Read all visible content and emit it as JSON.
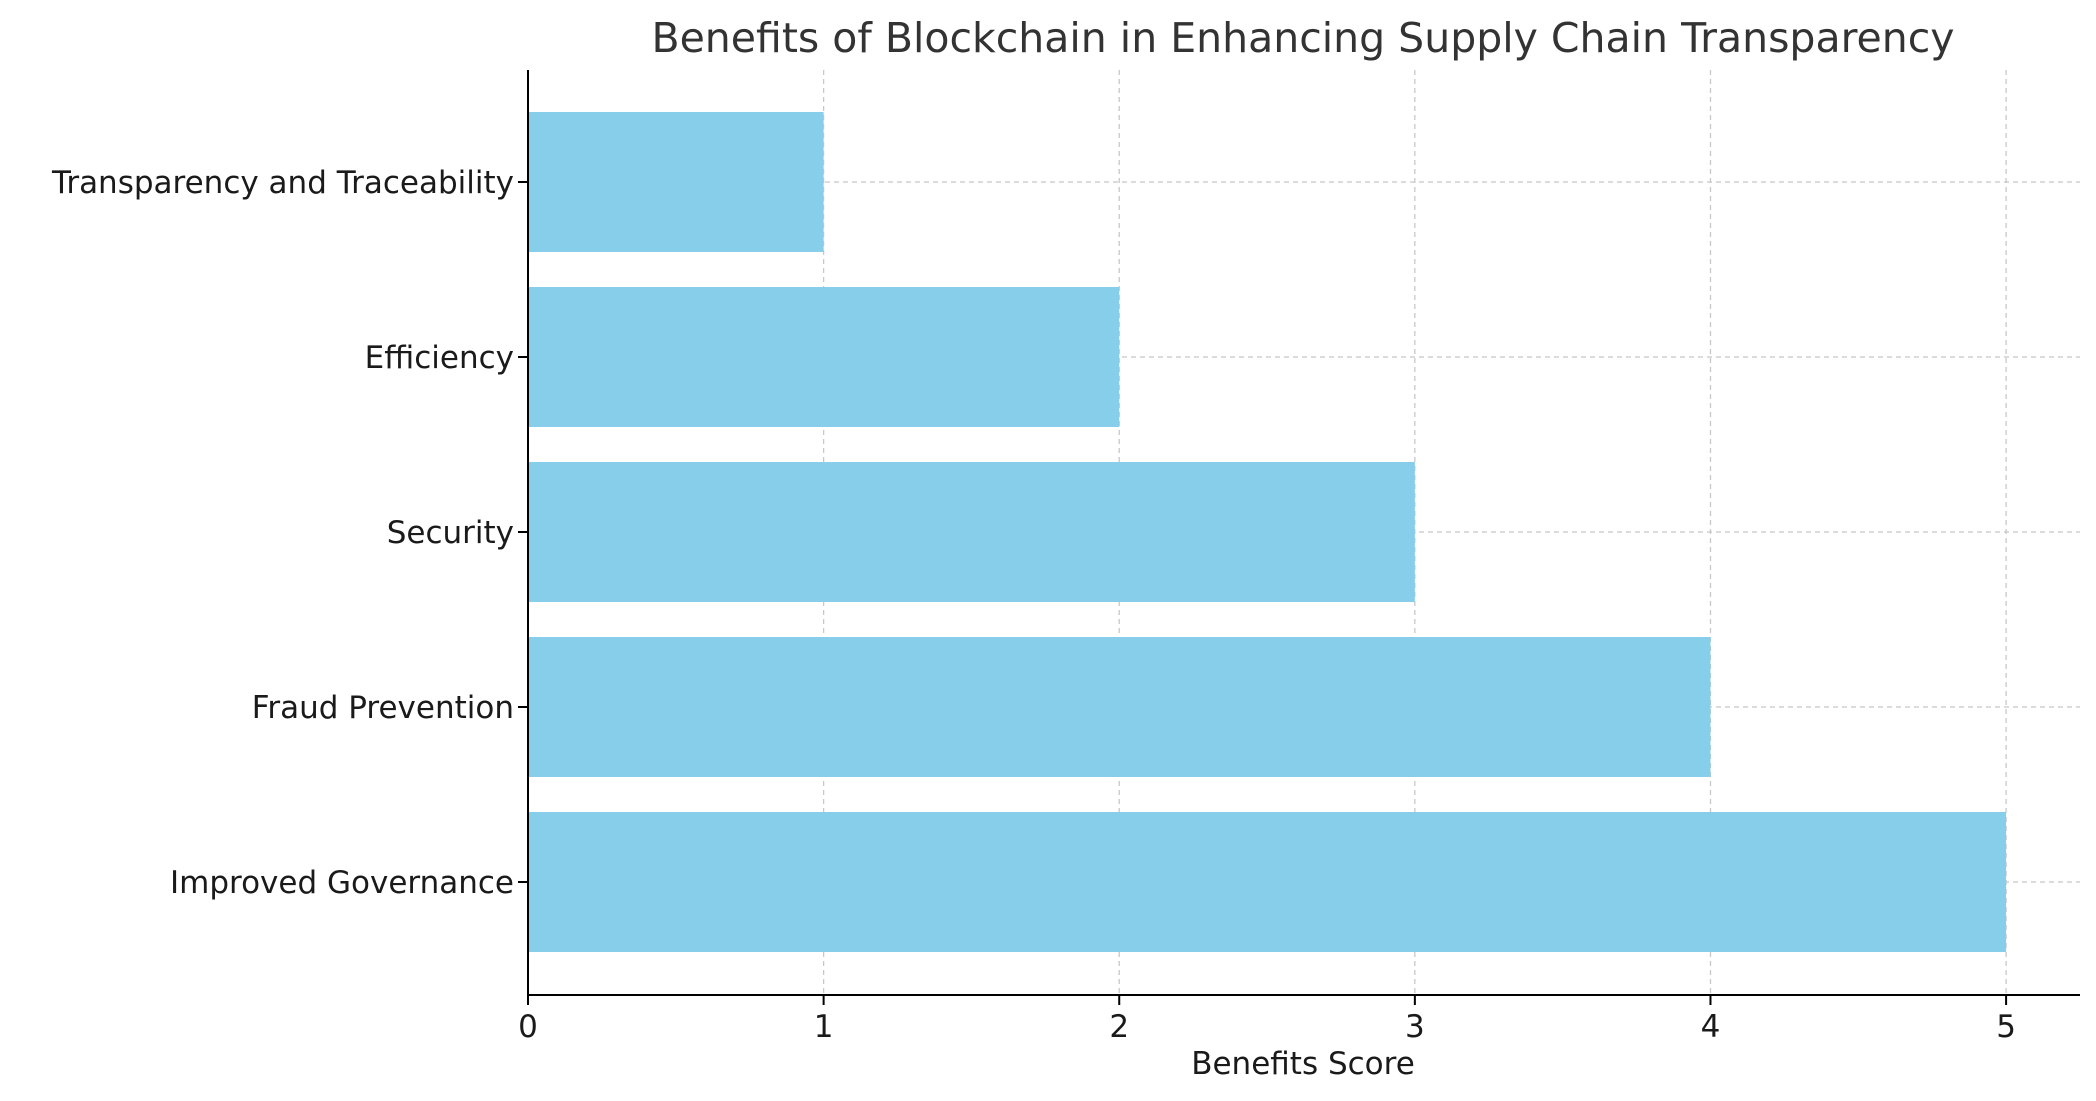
{
  "chart_data": {
    "type": "bar",
    "orientation": "horizontal",
    "title": "Benefits of Blockchain in Enhancing Supply Chain Transparency",
    "xlabel": "Benefits Score",
    "ylabel": "",
    "categories": [
      "Transparency and Traceability",
      "Efficiency",
      "Security",
      "Fraud Prevention",
      "Improved Governance"
    ],
    "values": [
      1,
      2,
      3,
      4,
      5
    ],
    "xlim": [
      0,
      5.25
    ],
    "xticks": [
      0,
      1,
      2,
      3,
      4,
      5
    ],
    "grid": true,
    "bar_color": "#87CEEB"
  }
}
